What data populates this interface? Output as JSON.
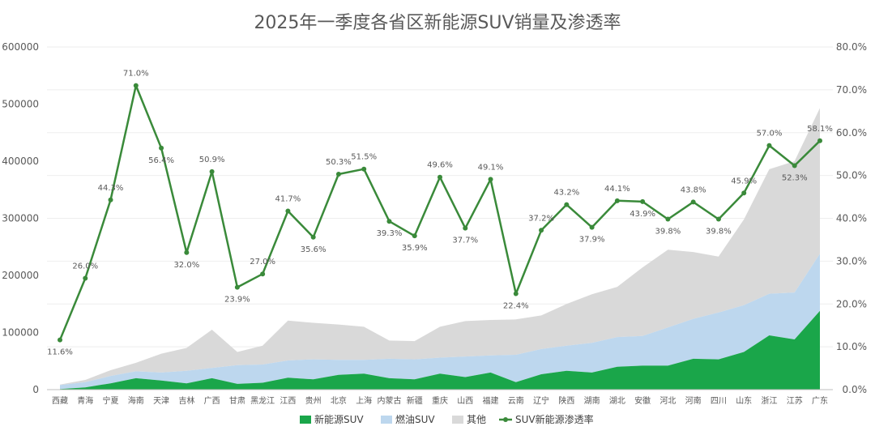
{
  "chart_data": {
    "type": "area",
    "title": "2025年一季度各省区新能源SUV销量及渗透率",
    "categories": [
      "西藏",
      "青海",
      "宁夏",
      "海南",
      "天津",
      "吉林",
      "广西",
      "甘肃",
      "黑龙江",
      "江西",
      "贵州",
      "北京",
      "上海",
      "内蒙古",
      "新疆",
      "重庆",
      "山西",
      "福建",
      "云南",
      "辽宁",
      "陕西",
      "湖南",
      "湖北",
      "安徽",
      "河北",
      "河南",
      "四川",
      "山东",
      "浙江",
      "江苏",
      "广东"
    ],
    "y_left": {
      "min": 0,
      "max": 600000,
      "ticks": [
        "0",
        "100000",
        "200000",
        "300000",
        "400000",
        "500000",
        "600000"
      ]
    },
    "y_right": {
      "min": 0,
      "max": 80,
      "ticks": [
        "0.0%",
        "10.0%",
        "20.0%",
        "30.0%",
        "40.0%",
        "50.0%",
        "60.0%",
        "70.0%",
        "80.0%"
      ]
    },
    "series": [
      {
        "name": "新能源SUV",
        "kind": "stacked-area",
        "color": "#1aa64a",
        "values": [
          1000,
          4000,
          11000,
          20000,
          16000,
          11000,
          20000,
          10000,
          12000,
          21000,
          18000,
          26000,
          28000,
          20000,
          18000,
          28000,
          22000,
          30000,
          13000,
          27000,
          33000,
          30000,
          40000,
          42000,
          42000,
          54000,
          53000,
          66000,
          95000,
          88000,
          138000
        ]
      },
      {
        "name": "燃油SUV",
        "kind": "stacked-area",
        "color": "#bdd7ee",
        "values": [
          7000,
          9000,
          13000,
          12000,
          14000,
          22000,
          18000,
          33000,
          32000,
          30000,
          35000,
          26000,
          24000,
          34000,
          35000,
          28000,
          36000,
          30000,
          48000,
          44000,
          44000,
          52000,
          52000,
          52000,
          67000,
          70000,
          82000,
          82000,
          73000,
          82000,
          100000
        ]
      },
      {
        "name": "其他",
        "kind": "stacked-area",
        "color": "#d9d9d9",
        "values": [
          1000,
          4000,
          10000,
          15000,
          33000,
          40000,
          67000,
          23000,
          33000,
          70000,
          64000,
          62000,
          58000,
          32000,
          32000,
          54000,
          62000,
          62000,
          62000,
          59000,
          73000,
          85000,
          88000,
          120000,
          136000,
          117000,
          98000,
          150000,
          218000,
          230000,
          255000
        ]
      },
      {
        "name": "SUV新能源渗透率",
        "kind": "line",
        "color": "#3a8a3a",
        "axis": "right",
        "values": [
          11.6,
          26.0,
          44.3,
          71.0,
          56.4,
          32.0,
          50.9,
          23.9,
          27.0,
          41.7,
          35.6,
          50.3,
          51.5,
          39.3,
          35.9,
          49.6,
          37.7,
          49.1,
          22.4,
          37.2,
          43.2,
          37.9,
          44.1,
          43.9,
          39.8,
          43.8,
          39.8,
          45.9,
          57.0,
          52.3,
          58.1
        ],
        "labels": [
          "11.6%",
          "26.0%",
          "44.3%",
          "71.0%",
          "56.4%",
          "32.0%",
          "50.9%",
          "23.9%",
          "27.0%",
          "41.7%",
          "35.6%",
          "50.3%",
          "51.5%",
          "39.3%",
          "35.9%",
          "49.6%",
          "37.7%",
          "49.1%",
          "22.4%",
          "37.2%",
          "43.2%",
          "37.9%",
          "44.1%",
          "43.9%",
          "39.8%",
          "43.8%",
          "39.8%",
          "45.9%",
          "57.0%",
          "52.3%",
          "58.1%"
        ]
      }
    ],
    "legend": {
      "placement": "bottom",
      "items": [
        "新能源SUV",
        "燃油SUV",
        "其他",
        "SUV新能源渗透率"
      ]
    },
    "grid": true
  }
}
